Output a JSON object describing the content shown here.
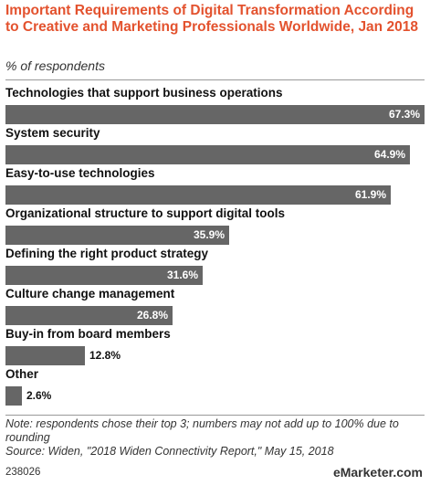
{
  "header": {
    "title": "Important Requirements of Digital Transformation According to Creative and Marketing Professionals Worldwide, Jan 2018",
    "subtitle": "% of respondents"
  },
  "chart_data": {
    "type": "bar",
    "orientation": "horizontal",
    "categories": [
      "Technologies that support business operations",
      "System security",
      "Easy-to-use technologies",
      "Organizational structure to support digital tools",
      "Defining the right product strategy",
      "Culture change management",
      "Buy-in from board members",
      "Other"
    ],
    "values": [
      67.3,
      64.9,
      61.9,
      35.9,
      31.6,
      26.8,
      12.8,
      2.6
    ],
    "value_labels": [
      "67.3%",
      "64.9%",
      "61.9%",
      "35.9%",
      "31.6%",
      "26.8%",
      "12.8%",
      "2.6%"
    ],
    "bar_color": "#666666",
    "xlim": [
      0,
      67.3
    ]
  },
  "footer": {
    "note": "Note: respondents chose their top 3; numbers may not add up to 100% due to rounding",
    "source": "Source: Widen, \"2018 Widen Connectivity Report,\" May 15, 2018",
    "id": "238026",
    "brand": "eMarketer.com"
  },
  "colors": {
    "title": "#e3522e",
    "bar": "#666666"
  }
}
